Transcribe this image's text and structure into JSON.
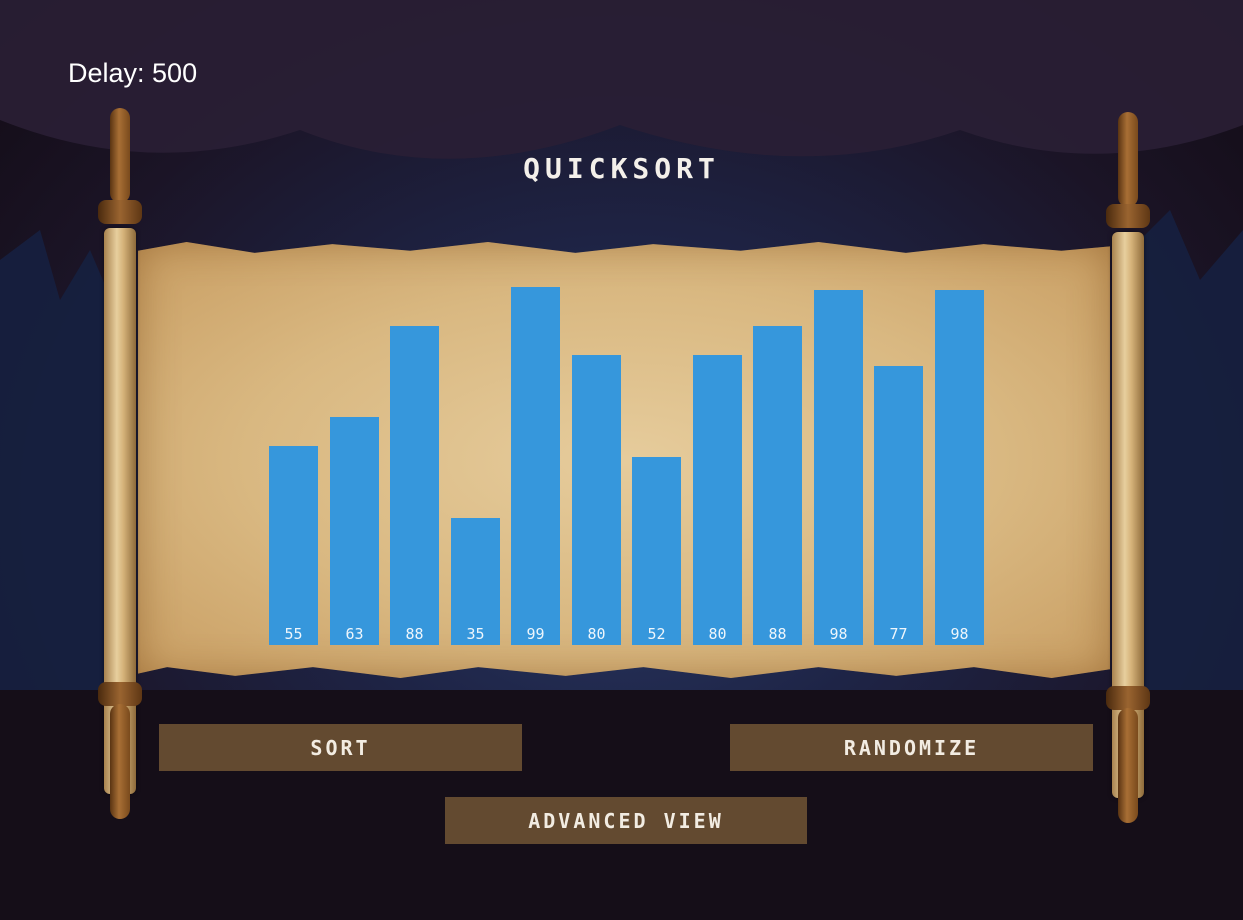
{
  "header": {
    "delay_label": "Delay: 500",
    "title": "QUICKSORT"
  },
  "controls": {
    "sort_label": "SORT",
    "randomize_label": "RANDOMIZE",
    "advanced_view_label": "ADVANCED VIEW"
  },
  "colors": {
    "bar": "#3697dc",
    "button": "#634a30"
  },
  "chart_data": {
    "type": "bar",
    "categories": [
      "55",
      "63",
      "88",
      "35",
      "99",
      "80",
      "52",
      "80",
      "88",
      "98",
      "77",
      "98"
    ],
    "values": [
      55,
      63,
      88,
      35,
      99,
      80,
      52,
      80,
      88,
      98,
      77,
      98
    ],
    "title": "",
    "xlabel": "",
    "ylabel": "",
    "ylim": [
      0,
      100
    ]
  }
}
